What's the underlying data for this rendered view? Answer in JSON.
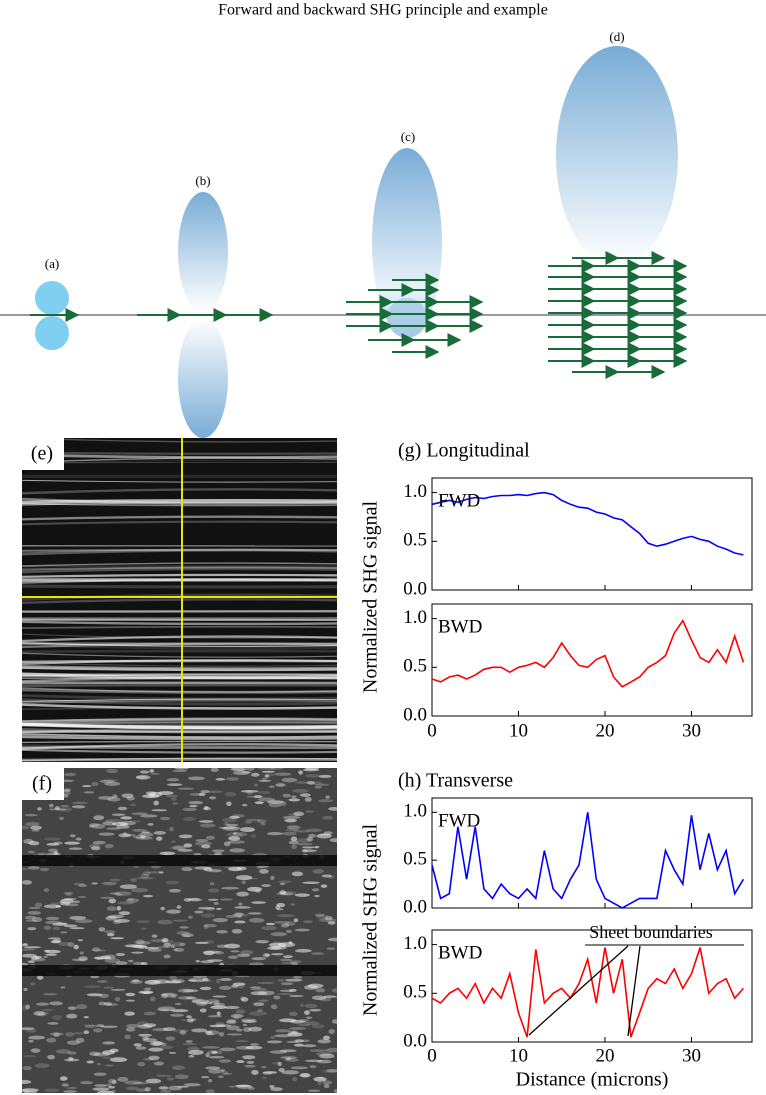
{
  "diagram": {
    "title": "Forward and backward SHG principle and example",
    "labels": [
      "(a)",
      "(b)",
      "(c)",
      "(d)"
    ]
  },
  "images": {
    "labels": [
      "(e)",
      "(f)"
    ]
  },
  "chart_data": [
    {
      "type": "line",
      "title": "(g) Longitudinal",
      "ylabel": "Normalized SHG signal",
      "x": [
        0,
        1,
        2,
        3,
        4,
        5,
        6,
        7,
        8,
        9,
        10,
        11,
        12,
        13,
        14,
        15,
        16,
        17,
        18,
        19,
        20,
        21,
        22,
        23,
        24,
        25,
        26,
        27,
        28,
        29,
        30,
        31,
        32,
        33,
        34,
        35,
        36
      ],
      "xlim": [
        0,
        37
      ],
      "xticks": [
        0,
        10,
        20,
        30
      ],
      "ylim": [
        0,
        1.15
      ],
      "yticks": [
        {
          "value": 0,
          "label": "0.0"
        },
        {
          "value": 0.5,
          "label": "0.5"
        },
        {
          "value": 1,
          "label": "1.0"
        }
      ],
      "series": [
        {
          "name": "FWD",
          "color": "#0000ff",
          "values": [
            0.88,
            0.9,
            0.92,
            0.9,
            0.93,
            0.95,
            0.94,
            0.96,
            0.97,
            0.97,
            0.98,
            0.97,
            0.99,
            1.0,
            0.98,
            0.92,
            0.88,
            0.85,
            0.84,
            0.8,
            0.78,
            0.74,
            0.72,
            0.65,
            0.58,
            0.48,
            0.45,
            0.47,
            0.5,
            0.53,
            0.55,
            0.52,
            0.5,
            0.45,
            0.42,
            0.38,
            0.36
          ]
        },
        {
          "name": "BWD",
          "color": "#ff0000",
          "values": [
            0.38,
            0.35,
            0.4,
            0.42,
            0.38,
            0.42,
            0.48,
            0.5,
            0.5,
            0.45,
            0.5,
            0.52,
            0.55,
            0.5,
            0.6,
            0.75,
            0.62,
            0.52,
            0.5,
            0.58,
            0.62,
            0.4,
            0.3,
            0.35,
            0.4,
            0.5,
            0.55,
            0.62,
            0.85,
            0.98,
            0.78,
            0.6,
            0.55,
            0.68,
            0.55,
            0.82,
            0.55
          ]
        }
      ]
    },
    {
      "type": "line",
      "title": "(h) Transverse",
      "ylabel": "Normalized SHG signal",
      "xlabel": "Distance (microns)",
      "annotation": "Sheet boundaries",
      "x": [
        0,
        1,
        2,
        3,
        4,
        5,
        6,
        7,
        8,
        9,
        10,
        11,
        12,
        13,
        14,
        15,
        16,
        17,
        18,
        19,
        20,
        21,
        22,
        23,
        24,
        25,
        26,
        27,
        28,
        29,
        30,
        31,
        32,
        33,
        34,
        35,
        36
      ],
      "xlim": [
        0,
        37
      ],
      "xticks": [
        0,
        10,
        20,
        30
      ],
      "ylim": [
        0,
        1.15
      ],
      "yticks": [
        {
          "value": 0,
          "label": "0.0"
        },
        {
          "value": 0.5,
          "label": "0.5"
        },
        {
          "value": 1,
          "label": "1.0"
        }
      ],
      "series": [
        {
          "name": "FWD",
          "color": "#0000ff",
          "values": [
            0.45,
            0.1,
            0.15,
            0.85,
            0.3,
            0.85,
            0.2,
            0.1,
            0.25,
            0.15,
            0.1,
            0.2,
            0.1,
            0.6,
            0.2,
            0.1,
            0.3,
            0.45,
            1.0,
            0.3,
            0.1,
            0.05,
            0.0,
            0.05,
            0.1,
            0.1,
            0.1,
            0.6,
            0.4,
            0.25,
            0.97,
            0.4,
            0.78,
            0.4,
            0.6,
            0.15,
            0.3
          ]
        },
        {
          "name": "BWD",
          "color": "#ff0000",
          "values": [
            0.45,
            0.4,
            0.5,
            0.55,
            0.45,
            0.6,
            0.4,
            0.55,
            0.45,
            0.7,
            0.3,
            0.05,
            0.95,
            0.4,
            0.5,
            0.55,
            0.45,
            0.6,
            0.85,
            0.4,
            0.97,
            0.5,
            0.85,
            0.05,
            0.3,
            0.55,
            0.65,
            0.6,
            0.75,
            0.55,
            0.7,
            0.97,
            0.5,
            0.6,
            0.65,
            0.45,
            0.55
          ]
        }
      ]
    }
  ]
}
